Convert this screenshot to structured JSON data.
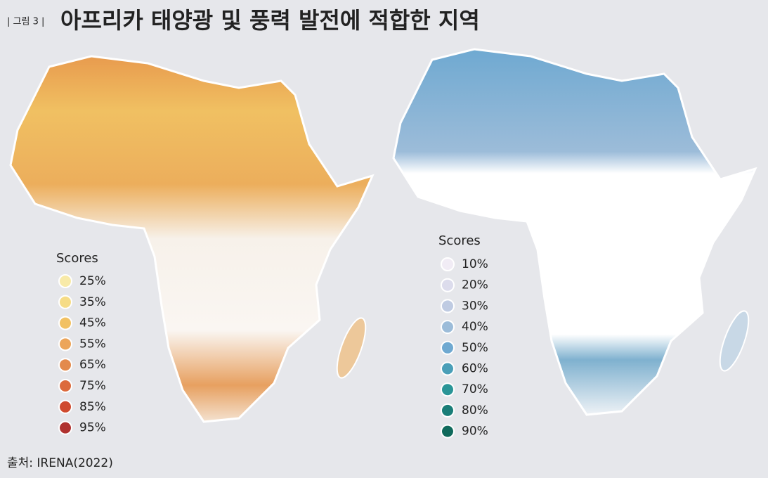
{
  "header": {
    "figure_label": "| 그림 3 |",
    "title": "아프리카 태양광 및 풍력 발전에 적합한 지역"
  },
  "maps": [
    {
      "legend_title": "Scores",
      "items": [
        {
          "label": "25%",
          "color": "#f8eaa8"
        },
        {
          "label": "35%",
          "color": "#f6dc86"
        },
        {
          "label": "45%",
          "color": "#f2c162"
        },
        {
          "label": "55%",
          "color": "#eca55a"
        },
        {
          "label": "65%",
          "color": "#e38a4c"
        },
        {
          "label": "75%",
          "color": "#dc6a3c"
        },
        {
          "label": "85%",
          "color": "#cf4a2f"
        },
        {
          "label": "95%",
          "color": "#b03230"
        }
      ]
    },
    {
      "legend_title": "Scores",
      "items": [
        {
          "label": "10%",
          "color": "#f1ecf5"
        },
        {
          "label": "20%",
          "color": "#dcdcec"
        },
        {
          "label": "30%",
          "color": "#bfcbe2"
        },
        {
          "label": "40%",
          "color": "#9cbcd9"
        },
        {
          "label": "50%",
          "color": "#6fa9d1"
        },
        {
          "label": "60%",
          "color": "#4a9fb8"
        },
        {
          "label": "70%",
          "color": "#2a9597"
        },
        {
          "label": "80%",
          "color": "#1a7e78"
        },
        {
          "label": "90%",
          "color": "#106a5c"
        }
      ]
    }
  ],
  "source": "출처: IRENA(2022)"
}
